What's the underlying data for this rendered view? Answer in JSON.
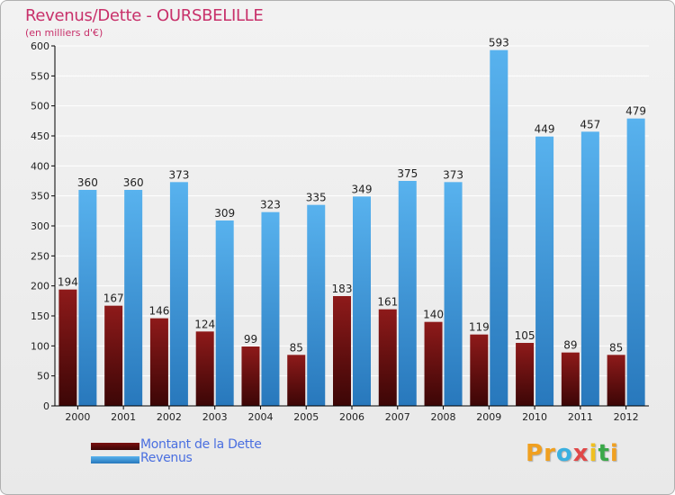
{
  "header": {
    "title": "Revenus/Dette - OURSBELILLE",
    "subtitle": "(en milliers d'€)"
  },
  "chart_data": {
    "type": "bar",
    "categories": [
      "2000",
      "2001",
      "2002",
      "2003",
      "2004",
      "2005",
      "2006",
      "2007",
      "2008",
      "2009",
      "2010",
      "2011",
      "2012"
    ],
    "series": [
      {
        "name": "Montant de la Dette",
        "color": "#7a1010",
        "values": [
          194,
          167,
          146,
          124,
          99,
          85,
          183,
          161,
          140,
          119,
          105,
          89,
          85
        ]
      },
      {
        "name": "Revenus",
        "color": "#4aa3e6",
        "values": [
          360,
          360,
          373,
          309,
          323,
          335,
          349,
          375,
          373,
          593,
          449,
          457,
          479
        ]
      }
    ],
    "ylim": [
      0,
      600
    ],
    "yticks": [
      0,
      50,
      100,
      150,
      200,
      250,
      300,
      350,
      400,
      450,
      500,
      550,
      600
    ],
    "grid": true,
    "legend": "bottom-left",
    "xlabel": "",
    "ylabel": ""
  },
  "legend": {
    "items": [
      {
        "label": "Montant de la Dette",
        "color": "#6a0c0c"
      },
      {
        "label": "Revenus",
        "color": "#4aa3e6"
      }
    ]
  },
  "logo": {
    "letters": [
      "P",
      "r",
      "o",
      "x",
      "i",
      "t",
      "i"
    ],
    "colors": [
      "#f0a020",
      "#f0a020",
      "#3ab0e0",
      "#e04848",
      "#f0c020",
      "#3aa848",
      "#f0a020"
    ]
  }
}
